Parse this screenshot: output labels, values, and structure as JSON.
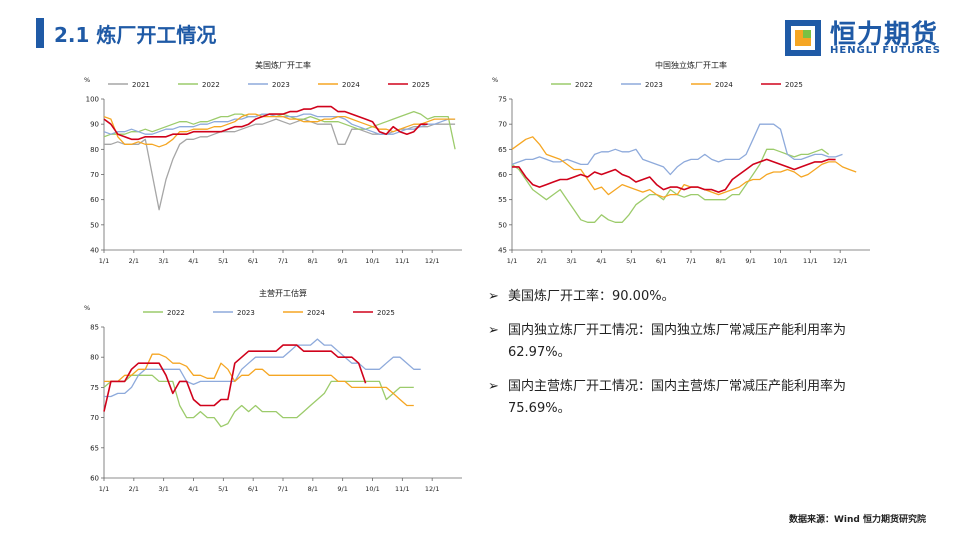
{
  "header": {
    "title": "2.1 炼厂开工情况",
    "logo_text": "恒力期货",
    "logo_sub": "HENGLI FUTURES"
  },
  "bullets": [
    "美国炼厂开工率：90.00%。",
    "国内独立炼厂开工情况：国内独立炼厂常减压产能利用率为62.97%。",
    "国内主营炼厂开工情况：国内主营炼厂常减压产能利用率为75.69%。"
  ],
  "footer": {
    "source": "数据来源：Wind 恒力期货研究院"
  },
  "colors": {
    "2021": "#a6a6a6",
    "2022": "#9ccb6b",
    "2023": "#8eaadb",
    "2024": "#f5a623",
    "2025": "#d0021b"
  },
  "chart_data": [
    {
      "type": "line",
      "title": "美国炼厂开工率",
      "ylabel": "%",
      "ylim": [
        40,
        100
      ],
      "yticks": [
        40,
        50,
        60,
        70,
        80,
        90,
        100
      ],
      "xticks": [
        "1/1",
        "2/1",
        "3/1",
        "4/1",
        "5/1",
        "6/1",
        "7/1",
        "8/1",
        "9/1",
        "10/1",
        "11/1",
        "12/1"
      ],
      "series": [
        {
          "name": "2021",
          "values": [
            82,
            82,
            83,
            82,
            82,
            82,
            84,
            70,
            56,
            68,
            76,
            82,
            84,
            84,
            85,
            85,
            86,
            87,
            87,
            87,
            88,
            89,
            90,
            90,
            91,
            92,
            91,
            90,
            91,
            92,
            91,
            90,
            90,
            90,
            82,
            82,
            88,
            88,
            87,
            86,
            86,
            86,
            87,
            88,
            88,
            89,
            89,
            89,
            90,
            90,
            90,
            90
          ]
        },
        {
          "name": "2022",
          "values": [
            85,
            86,
            86,
            86,
            87,
            87,
            88,
            87,
            88,
            89,
            90,
            91,
            91,
            90,
            91,
            91,
            92,
            93,
            93,
            94,
            94,
            93,
            93,
            94,
            94,
            93,
            94,
            93,
            92,
            92,
            93,
            92,
            91,
            91,
            91,
            90,
            89,
            88,
            88,
            89,
            90,
            91,
            92,
            93,
            94,
            95,
            94,
            92,
            93,
            93,
            93,
            80
          ]
        },
        {
          "name": "2023",
          "values": [
            87,
            86,
            87,
            87,
            88,
            87,
            86,
            86,
            87,
            88,
            88,
            89,
            89,
            89,
            90,
            90,
            91,
            91,
            91,
            92,
            92,
            93,
            93,
            94,
            94,
            93,
            93,
            93,
            93,
            94,
            94,
            93,
            93,
            93,
            93,
            92,
            90,
            89,
            88,
            87,
            86,
            86,
            86,
            87,
            88,
            88,
            89,
            90,
            90,
            91,
            92,
            92
          ]
        },
        {
          "name": "2024",
          "values": [
            93,
            92,
            85,
            82,
            82,
            83,
            82,
            82,
            81,
            82,
            84,
            87,
            87,
            88,
            88,
            88,
            89,
            89,
            90,
            91,
            93,
            94,
            94,
            93,
            93,
            93,
            93,
            92,
            92,
            91,
            91,
            91,
            92,
            92,
            93,
            93,
            92,
            91,
            90,
            89,
            88,
            88,
            87,
            88,
            89,
            90,
            90,
            91,
            92,
            92,
            92,
            92
          ]
        },
        {
          "name": "2025",
          "values": [
            92,
            90,
            86,
            85,
            84,
            84,
            85,
            85,
            85,
            85,
            86,
            86,
            86,
            87,
            87,
            87,
            87,
            87,
            88,
            89,
            89,
            90,
            92,
            93,
            94,
            94,
            94,
            95,
            95,
            96,
            96,
            97,
            97,
            97,
            95,
            95,
            94,
            93,
            92,
            91,
            87,
            86,
            89,
            87,
            86,
            87,
            90,
            90
          ]
        }
      ]
    },
    {
      "type": "line",
      "title": "中国独立炼厂开工率",
      "ylabel": "%",
      "ylim": [
        45,
        75
      ],
      "yticks": [
        45,
        50,
        55,
        60,
        65,
        70,
        75
      ],
      "xticks": [
        "1/1",
        "2/1",
        "3/1",
        "4/1",
        "5/1",
        "6/1",
        "7/1",
        "8/1",
        "9/1",
        "10/1",
        "11/1",
        "12/1"
      ],
      "series": [
        {
          "name": "2022",
          "values": [
            62,
            61,
            59,
            57,
            56,
            55,
            56,
            57,
            55,
            53,
            51,
            50.5,
            50.5,
            52,
            51,
            50.5,
            50.5,
            52,
            54,
            55,
            56,
            56,
            55,
            57,
            56,
            55.5,
            56,
            56,
            55,
            55,
            55,
            55,
            56,
            56,
            58,
            60,
            62,
            65,
            65,
            64.5,
            64,
            63.5,
            64,
            64,
            64.5,
            65,
            64
          ]
        },
        {
          "name": "2023",
          "values": [
            62,
            62.5,
            63,
            63,
            63.5,
            63,
            62.5,
            62.5,
            63,
            62.5,
            62,
            62,
            64,
            64.5,
            64.5,
            65,
            64.5,
            64.5,
            65,
            63,
            62.5,
            62,
            61.5,
            60,
            61.5,
            62.5,
            63,
            63,
            64,
            63,
            62.5,
            63,
            63,
            63,
            64,
            67,
            70,
            70,
            70,
            69,
            64,
            63,
            63,
            63.5,
            64,
            64,
            63.5,
            63.5,
            64
          ]
        },
        {
          "name": "2024",
          "values": [
            65,
            66,
            67,
            67.5,
            66,
            64,
            63.5,
            63,
            62,
            61,
            61,
            59,
            57,
            57.5,
            56,
            57,
            58,
            57.5,
            57,
            56.5,
            57,
            56,
            55.5,
            56,
            56,
            58,
            57.5,
            57.5,
            57,
            56.5,
            56,
            56.5,
            57,
            57.5,
            58.5,
            59,
            59,
            60,
            60.5,
            60.5,
            61,
            60.5,
            59.5,
            60,
            61,
            62,
            62.5,
            62.5,
            61.5,
            61,
            60.5
          ]
        },
        {
          "name": "2025",
          "values": [
            61.5,
            61.5,
            59.5,
            58,
            57.5,
            58,
            58.5,
            59,
            59,
            59.5,
            60,
            59.5,
            60.5,
            60,
            60.5,
            61,
            60,
            59.5,
            58.5,
            59,
            59.5,
            58,
            57,
            57.5,
            57.5,
            57,
            57.5,
            57.5,
            57,
            57,
            56.5,
            57,
            59,
            60,
            61,
            62,
            62.5,
            63,
            62.5,
            62,
            61.5,
            61,
            61.5,
            62,
            62.5,
            62.5,
            63,
            62.97
          ]
        }
      ]
    },
    {
      "type": "line",
      "title": "主营开工估算",
      "ylabel": "%",
      "ylim": [
        60,
        85
      ],
      "yticks": [
        60,
        65,
        70,
        75,
        80,
        85
      ],
      "xticks": [
        "1/1",
        "2/1",
        "3/1",
        "4/1",
        "5/1",
        "6/1",
        "7/1",
        "8/1",
        "9/1",
        "10/1",
        "11/1",
        "12/1"
      ],
      "series": [
        {
          "name": "2022",
          "values": [
            75,
            76,
            76,
            76,
            77,
            77,
            77,
            77,
            76,
            76,
            76,
            72,
            70,
            70,
            71,
            70,
            70,
            68.5,
            69,
            71,
            72,
            71,
            72,
            71,
            71,
            71,
            70,
            70,
            70,
            71,
            72,
            73,
            74,
            76,
            76,
            76,
            76,
            76,
            76,
            76,
            76,
            73,
            74,
            75,
            75,
            75
          ]
        },
        {
          "name": "2023",
          "values": [
            73.5,
            73.5,
            74,
            74,
            75,
            77,
            78,
            78,
            78,
            78,
            78,
            78,
            76,
            75.5,
            76,
            76,
            76,
            76,
            76,
            76,
            78,
            79,
            80,
            80,
            80,
            80,
            80,
            81,
            82,
            82,
            82,
            83,
            82,
            82,
            81,
            80,
            79,
            79,
            78,
            78,
            78,
            79,
            80,
            80,
            79,
            78,
            78
          ]
        },
        {
          "name": "2024",
          "values": [
            76,
            76,
            76,
            77,
            77,
            78,
            78,
            80.5,
            80.5,
            80,
            79,
            79,
            78.5,
            77,
            77,
            76.5,
            76.5,
            79,
            78,
            76,
            77,
            77,
            78,
            78,
            77,
            77,
            77,
            77,
            77,
            77,
            77,
            77,
            77,
            77,
            76,
            76,
            75,
            75,
            75,
            75,
            75,
            75,
            74,
            73,
            72,
            72
          ]
        },
        {
          "name": "2025",
          "values": [
            71,
            76,
            76,
            76,
            78,
            79,
            79,
            79,
            79,
            77,
            74,
            76,
            76,
            73,
            72,
            72,
            72,
            73,
            73,
            79,
            80,
            81,
            81,
            81,
            81,
            81,
            82,
            82,
            82,
            81,
            81,
            81,
            81,
            81,
            80,
            80,
            80,
            79,
            75.69
          ]
        }
      ]
    }
  ]
}
